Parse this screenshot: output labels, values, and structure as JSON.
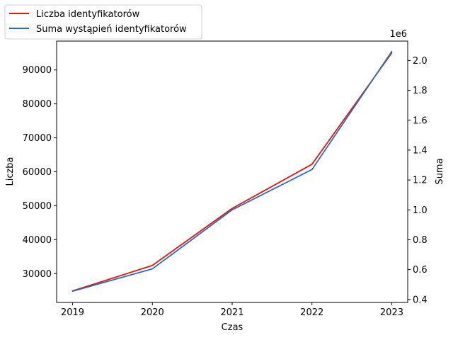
{
  "chart_data": {
    "type": "line",
    "title": "",
    "xlabel": "Czas",
    "ylabel_left": "Liczba",
    "ylabel_right": "Suma",
    "right_axis_offset_label": "1e6",
    "x": [
      2019,
      2020,
      2021,
      2022,
      2023
    ],
    "x_ticks": [
      "2019",
      "2020",
      "2021",
      "2022",
      "2023"
    ],
    "xlim": [
      2018.8,
      2023.2
    ],
    "ylim_left": [
      21500,
      98500
    ],
    "ylim_right": [
      0.38,
      2.13
    ],
    "y_ticks_left": [
      30000,
      40000,
      50000,
      60000,
      70000,
      80000,
      90000
    ],
    "y_ticks_right": [
      0.4,
      0.6,
      0.8,
      1.0,
      1.2,
      1.4,
      1.6,
      1.8,
      2.0
    ],
    "y_ticks_right_labels": [
      "0.4",
      "0.6",
      "0.8",
      "1.0",
      "1.2",
      "1.4",
      "1.6",
      "1.8",
      "2.0"
    ],
    "grid": false,
    "legend_position": "top-left",
    "series": [
      {
        "name": "Liczba identyfikatorów",
        "axis": "left",
        "color": "#e8120c",
        "values": [
          24900,
          32400,
          49200,
          62200,
          95000
        ]
      },
      {
        "name": "Suma wystąpień identyfikatorów",
        "axis": "right",
        "color": "#2a6db7",
        "values": [
          0.455,
          0.605,
          1.0,
          1.27,
          2.06
        ]
      }
    ]
  }
}
